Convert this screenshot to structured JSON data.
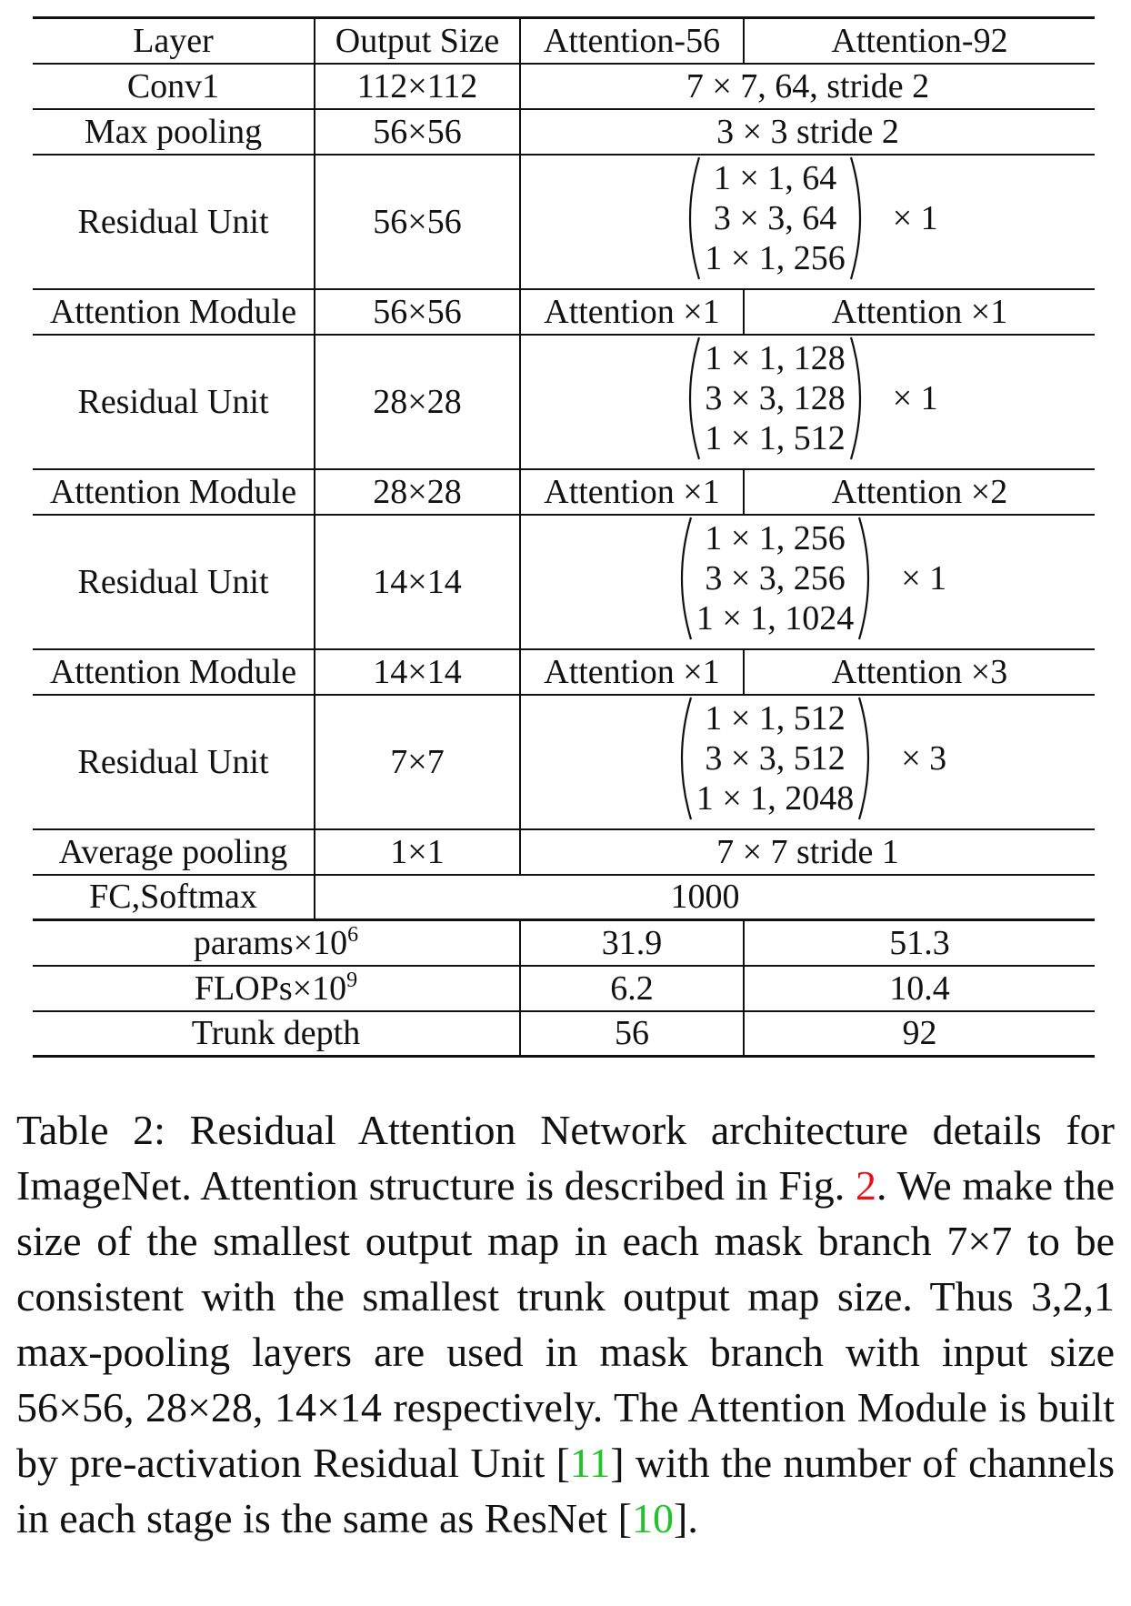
{
  "table": {
    "headers": [
      "Layer",
      "Output Size",
      "Attention-56",
      "Attention-92"
    ],
    "rows": [
      {
        "layer": "Conv1",
        "output_size": "112×112",
        "spec": "7 × 7, 64, stride 2"
      },
      {
        "layer": "Max pooling",
        "output_size": "56×56",
        "spec": "3 × 3 stride 2"
      },
      {
        "layer": "Residual Unit",
        "output_size": "56×56",
        "block": [
          "1 × 1, 64",
          "3 × 3, 64",
          "1 × 1, 256"
        ],
        "repeat": "× 1"
      },
      {
        "layer": "Attention Module",
        "output_size": "56×56",
        "att56": "Attention ×1",
        "att92": "Attention ×1"
      },
      {
        "layer": "Residual Unit",
        "output_size": "28×28",
        "block": [
          "1 × 1, 128",
          "3 × 3, 128",
          "1 × 1, 512"
        ],
        "repeat": "× 1"
      },
      {
        "layer": "Attention Module",
        "output_size": "28×28",
        "att56": "Attention ×1",
        "att92": "Attention ×2"
      },
      {
        "layer": "Residual Unit",
        "output_size": "14×14",
        "block": [
          "1 × 1, 256",
          "3 × 3, 256",
          "1 × 1, 1024"
        ],
        "repeat": "× 1"
      },
      {
        "layer": "Attention Module",
        "output_size": "14×14",
        "att56": "Attention ×1",
        "att92": "Attention ×3"
      },
      {
        "layer": "Residual Unit",
        "output_size": "7×7",
        "block": [
          "1 × 1, 512",
          "3 × 3, 512",
          "1 × 1, 2048"
        ],
        "repeat": "× 3"
      },
      {
        "layer": "Average pooling",
        "output_size": "1×1",
        "spec": "7 × 7 stride 1"
      },
      {
        "layer": "FC,Softmax",
        "spec": "1000"
      }
    ],
    "stats": [
      {
        "label": "params×10",
        "exp": "6",
        "att56": "31.9",
        "att92": "51.3"
      },
      {
        "label": "FLOPs×10",
        "exp": "9",
        "att56": "6.2",
        "att92": "10.4"
      },
      {
        "label": "Trunk depth",
        "exp": "",
        "att56": "56",
        "att92": "92"
      }
    ]
  },
  "caption": {
    "part1": "Table 2: Residual Attention Network architecture details for ImageNet. Attention structure is described in Fig. ",
    "ref_fig": "2",
    "part2": ". We make the size of the smallest output map in each mask branch 7×7 to be consistent with the smallest trunk output map size. Thus 3,2,1 max-pooling layers are used in mask branch with input size 56×56, 28×28, 14×14 respectively. The Attention Module is built by pre-activation Residual Unit [",
    "ref_a": "11",
    "part3": "] with the number of channels in each stage is the same as ResNet [",
    "ref_b": "10",
    "part4": "]."
  }
}
